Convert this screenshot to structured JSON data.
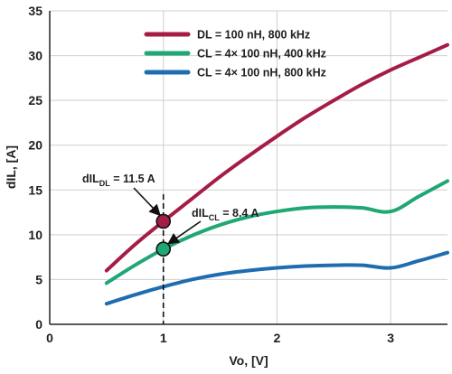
{
  "chart_data": {
    "type": "line",
    "xlabel": "Vo, [V]",
    "ylabel": "dIL, [A]",
    "xlim": [
      0,
      3.5
    ],
    "ylim": [
      0,
      35
    ],
    "x_ticks": [
      0,
      1,
      2,
      3
    ],
    "y_ticks": [
      0,
      5,
      10,
      15,
      20,
      25,
      30,
      35
    ],
    "grid": true,
    "legend_position": "top-center",
    "series": [
      {
        "name": "DL = 100 nH, 800 kHz",
        "color": "#a51c45",
        "x": [
          0.5,
          0.75,
          1.0,
          1.25,
          1.5,
          1.75,
          2.0,
          2.25,
          2.5,
          2.75,
          3.0,
          3.25,
          3.5
        ],
        "y": [
          6.0,
          8.9,
          11.5,
          14.0,
          16.5,
          18.8,
          21.0,
          23.1,
          25.0,
          26.8,
          28.4,
          29.8,
          31.2
        ]
      },
      {
        "name": "CL = 4× 100 nH, 400 kHz",
        "color": "#1fa774",
        "x": [
          0.5,
          0.75,
          1.0,
          1.25,
          1.5,
          1.75,
          2.0,
          2.25,
          2.5,
          2.75,
          3.0,
          3.25,
          3.5
        ],
        "y": [
          4.6,
          6.6,
          8.4,
          9.9,
          11.1,
          12.0,
          12.6,
          13.0,
          13.1,
          13.0,
          12.6,
          14.3,
          16.0
        ]
      },
      {
        "name": "CL = 4× 100 nH, 800 kHz",
        "color": "#1f6db0",
        "x": [
          0.5,
          0.75,
          1.0,
          1.25,
          1.5,
          1.75,
          2.0,
          2.25,
          2.5,
          2.75,
          3.0,
          3.25,
          3.5
        ],
        "y": [
          2.3,
          3.3,
          4.2,
          5.0,
          5.6,
          6.0,
          6.3,
          6.5,
          6.6,
          6.6,
          6.3,
          7.1,
          8.0
        ]
      }
    ],
    "reference_line": {
      "x": 1.0,
      "style": "dashed"
    },
    "markers": [
      {
        "x": 1.0,
        "y": 11.5,
        "color": "#a51c45"
      },
      {
        "x": 1.0,
        "y": 8.4,
        "color": "#1fa774"
      }
    ],
    "annotations": [
      {
        "main": "dIL",
        "sub": "DL",
        "rest": " = 11.5 A"
      },
      {
        "main": "dIL",
        "sub": "CL",
        "rest": " = 8.4 A"
      }
    ]
  }
}
